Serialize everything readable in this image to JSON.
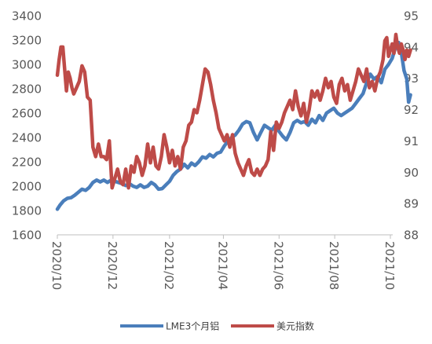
{
  "chart_data": {
    "type": "line",
    "title": "",
    "x_ticks": [
      "2020/10",
      "2020/12",
      "2021/02",
      "2021/04",
      "2021/06",
      "2021/08",
      "2021/10"
    ],
    "y_left": {
      "min": 1600,
      "max": 3400,
      "step": 200,
      "ticks": [
        "1600",
        "1800",
        "2000",
        "2200",
        "2400",
        "2600",
        "2800",
        "3000",
        "3200",
        "3400"
      ]
    },
    "y_right": {
      "min": 88,
      "max": 95,
      "step": 1,
      "ticks": [
        "88",
        "89",
        "90",
        "91",
        "92",
        "93",
        "94",
        "95"
      ]
    },
    "grid": false,
    "legend_position": "bottom",
    "series": [
      {
        "name": "LME3个月铝",
        "axis": "left",
        "color": "#4a7ebb",
        "points": [
          [
            "2020-10-01",
            1810
          ],
          [
            "2020-10-04",
            1845
          ],
          [
            "2020-10-08",
            1880
          ],
          [
            "2020-10-12",
            1900
          ],
          [
            "2020-10-16",
            1905
          ],
          [
            "2020-10-20",
            1925
          ],
          [
            "2020-10-24",
            1950
          ],
          [
            "2020-10-28",
            1975
          ],
          [
            "2020-11-01",
            1965
          ],
          [
            "2020-11-05",
            1990
          ],
          [
            "2020-11-09",
            2030
          ],
          [
            "2020-11-13",
            2050
          ],
          [
            "2020-11-17",
            2035
          ],
          [
            "2020-11-21",
            2050
          ],
          [
            "2020-11-25",
            2030
          ],
          [
            "2020-11-29",
            2050
          ],
          [
            "2020-12-03",
            2040
          ],
          [
            "2020-12-07",
            2030
          ],
          [
            "2020-12-11",
            2020
          ],
          [
            "2020-12-15",
            2005
          ],
          [
            "2020-12-19",
            2020
          ],
          [
            "2020-12-23",
            2000
          ],
          [
            "2020-12-27",
            1990
          ],
          [
            "2020-12-31",
            2010
          ],
          [
            "2021-01-04",
            1990
          ],
          [
            "2021-01-08",
            2000
          ],
          [
            "2021-01-12",
            2030
          ],
          [
            "2021-01-16",
            2010
          ],
          [
            "2021-01-20",
            1975
          ],
          [
            "2021-01-24",
            1980
          ],
          [
            "2021-01-28",
            2010
          ],
          [
            "2021-02-01",
            2040
          ],
          [
            "2021-02-05",
            2090
          ],
          [
            "2021-02-09",
            2120
          ],
          [
            "2021-02-13",
            2140
          ],
          [
            "2021-02-17",
            2180
          ],
          [
            "2021-02-21",
            2150
          ],
          [
            "2021-02-25",
            2190
          ],
          [
            "2021-03-01",
            2170
          ],
          [
            "2021-03-05",
            2200
          ],
          [
            "2021-03-09",
            2240
          ],
          [
            "2021-03-13",
            2230
          ],
          [
            "2021-03-17",
            2260
          ],
          [
            "2021-03-21",
            2240
          ],
          [
            "2021-03-25",
            2270
          ],
          [
            "2021-03-29",
            2280
          ],
          [
            "2021-04-02",
            2330
          ],
          [
            "2021-04-06",
            2370
          ],
          [
            "2021-04-10",
            2400
          ],
          [
            "2021-04-14",
            2420
          ],
          [
            "2021-04-18",
            2460
          ],
          [
            "2021-04-22",
            2510
          ],
          [
            "2021-04-26",
            2530
          ],
          [
            "2021-04-30",
            2520
          ],
          [
            "2021-05-04",
            2440
          ],
          [
            "2021-05-08",
            2380
          ],
          [
            "2021-05-12",
            2440
          ],
          [
            "2021-05-16",
            2500
          ],
          [
            "2021-05-20",
            2480
          ],
          [
            "2021-05-24",
            2460
          ],
          [
            "2021-05-28",
            2500
          ],
          [
            "2021-06-01",
            2450
          ],
          [
            "2021-06-05",
            2410
          ],
          [
            "2021-06-09",
            2380
          ],
          [
            "2021-06-13",
            2440
          ],
          [
            "2021-06-17",
            2520
          ],
          [
            "2021-06-21",
            2540
          ],
          [
            "2021-06-25",
            2520
          ],
          [
            "2021-06-29",
            2530
          ],
          [
            "2021-07-03",
            2500
          ],
          [
            "2021-07-07",
            2550
          ],
          [
            "2021-07-11",
            2520
          ],
          [
            "2021-07-15",
            2580
          ],
          [
            "2021-07-19",
            2540
          ],
          [
            "2021-07-23",
            2600
          ],
          [
            "2021-07-27",
            2620
          ],
          [
            "2021-07-31",
            2640
          ],
          [
            "2021-08-04",
            2600
          ],
          [
            "2021-08-08",
            2580
          ],
          [
            "2021-08-12",
            2600
          ],
          [
            "2021-08-16",
            2620
          ],
          [
            "2021-08-20",
            2640
          ],
          [
            "2021-08-24",
            2680
          ],
          [
            "2021-08-28",
            2720
          ],
          [
            "2021-09-01",
            2760
          ],
          [
            "2021-09-05",
            2850
          ],
          [
            "2021-09-09",
            2920
          ],
          [
            "2021-09-13",
            2880
          ],
          [
            "2021-09-17",
            2900
          ],
          [
            "2021-09-21",
            2850
          ],
          [
            "2021-09-25",
            2960
          ],
          [
            "2021-09-29",
            3000
          ],
          [
            "2021-10-03",
            3050
          ],
          [
            "2021-10-07",
            3150
          ],
          [
            "2021-10-10",
            3180
          ],
          [
            "2021-10-13",
            3100
          ],
          [
            "2021-10-16",
            2950
          ],
          [
            "2021-10-19",
            2880
          ],
          [
            "2021-10-21",
            2690
          ],
          [
            "2021-10-23",
            2750
          ]
        ]
      },
      {
        "name": "美元指数",
        "axis": "right",
        "color": "#be4b48",
        "points": [
          [
            "2020-10-01",
            93.1
          ],
          [
            "2020-10-03",
            93.6
          ],
          [
            "2020-10-05",
            94.0
          ],
          [
            "2020-10-07",
            94.0
          ],
          [
            "2020-10-09",
            93.3
          ],
          [
            "2020-10-11",
            92.6
          ],
          [
            "2020-10-13",
            93.2
          ],
          [
            "2020-10-15",
            93.0
          ],
          [
            "2020-10-17",
            92.7
          ],
          [
            "2020-10-19",
            92.5
          ],
          [
            "2020-10-22",
            92.7
          ],
          [
            "2020-10-25",
            92.9
          ],
          [
            "2020-10-28",
            93.4
          ],
          [
            "2020-10-31",
            93.2
          ],
          [
            "2020-11-03",
            92.4
          ],
          [
            "2020-11-06",
            92.3
          ],
          [
            "2020-11-09",
            90.8
          ],
          [
            "2020-11-12",
            90.5
          ],
          [
            "2020-11-15",
            90.9
          ],
          [
            "2020-11-18",
            90.5
          ],
          [
            "2020-11-21",
            90.5
          ],
          [
            "2020-11-24",
            90.4
          ],
          [
            "2020-11-27",
            91.0
          ],
          [
            "2020-11-30",
            89.5
          ],
          [
            "2020-12-03",
            89.8
          ],
          [
            "2020-12-06",
            90.1
          ],
          [
            "2020-12-09",
            89.7
          ],
          [
            "2020-12-12",
            89.6
          ],
          [
            "2020-12-15",
            90.1
          ],
          [
            "2020-12-18",
            89.5
          ],
          [
            "2020-12-21",
            90.2
          ],
          [
            "2020-12-24",
            90.0
          ],
          [
            "2020-12-27",
            90.5
          ],
          [
            "2020-12-30",
            90.3
          ],
          [
            "2021-01-02",
            89.9
          ],
          [
            "2021-01-05",
            90.2
          ],
          [
            "2021-01-08",
            90.9
          ],
          [
            "2021-01-11",
            90.3
          ],
          [
            "2021-01-14",
            90.8
          ],
          [
            "2021-01-17",
            90.2
          ],
          [
            "2021-01-20",
            90.1
          ],
          [
            "2021-01-23",
            90.5
          ],
          [
            "2021-01-26",
            91.2
          ],
          [
            "2021-01-29",
            90.8
          ],
          [
            "2021-02-01",
            90.3
          ],
          [
            "2021-02-04",
            90.7
          ],
          [
            "2021-02-07",
            90.2
          ],
          [
            "2021-02-10",
            90.5
          ],
          [
            "2021-02-13",
            90.1
          ],
          [
            "2021-02-16",
            90.8
          ],
          [
            "2021-02-19",
            91.0
          ],
          [
            "2021-02-22",
            91.5
          ],
          [
            "2021-02-25",
            91.6
          ],
          [
            "2021-02-28",
            92.0
          ],
          [
            "2021-03-03",
            91.9
          ],
          [
            "2021-03-06",
            92.3
          ],
          [
            "2021-03-09",
            92.8
          ],
          [
            "2021-03-12",
            93.3
          ],
          [
            "2021-03-15",
            93.2
          ],
          [
            "2021-03-18",
            92.8
          ],
          [
            "2021-03-21",
            92.3
          ],
          [
            "2021-03-24",
            91.9
          ],
          [
            "2021-03-27",
            91.4
          ],
          [
            "2021-03-30",
            91.2
          ],
          [
            "2021-04-02",
            91.0
          ],
          [
            "2021-04-05",
            91.2
          ],
          [
            "2021-04-08",
            90.8
          ],
          [
            "2021-04-11",
            91.2
          ],
          [
            "2021-04-14",
            90.6
          ],
          [
            "2021-04-17",
            90.3
          ],
          [
            "2021-04-20",
            90.1
          ],
          [
            "2021-04-23",
            89.9
          ],
          [
            "2021-04-26",
            90.2
          ],
          [
            "2021-04-29",
            90.4
          ],
          [
            "2021-05-02",
            90.0
          ],
          [
            "2021-05-05",
            89.9
          ],
          [
            "2021-05-08",
            90.1
          ],
          [
            "2021-05-11",
            89.9
          ],
          [
            "2021-05-14",
            90.1
          ],
          [
            "2021-05-17",
            90.2
          ],
          [
            "2021-05-20",
            90.4
          ],
          [
            "2021-05-23",
            91.3
          ],
          [
            "2021-05-26",
            90.7
          ],
          [
            "2021-05-29",
            91.6
          ],
          [
            "2021-06-01",
            91.4
          ],
          [
            "2021-06-04",
            91.6
          ],
          [
            "2021-06-07",
            91.9
          ],
          [
            "2021-06-10",
            92.1
          ],
          [
            "2021-06-13",
            92.3
          ],
          [
            "2021-06-16",
            92.0
          ],
          [
            "2021-06-19",
            92.6
          ],
          [
            "2021-06-22",
            92.1
          ],
          [
            "2021-06-25",
            91.8
          ],
          [
            "2021-06-28",
            92.2
          ],
          [
            "2021-07-01",
            91.6
          ],
          [
            "2021-07-04",
            92.0
          ],
          [
            "2021-07-07",
            92.6
          ],
          [
            "2021-07-10",
            92.4
          ],
          [
            "2021-07-13",
            92.6
          ],
          [
            "2021-07-16",
            92.3
          ],
          [
            "2021-07-19",
            92.6
          ],
          [
            "2021-07-22",
            93.0
          ],
          [
            "2021-07-25",
            92.7
          ],
          [
            "2021-07-28",
            92.9
          ],
          [
            "2021-07-31",
            92.4
          ],
          [
            "2021-08-03",
            92.2
          ],
          [
            "2021-08-06",
            92.8
          ],
          [
            "2021-08-09",
            93.0
          ],
          [
            "2021-08-12",
            92.6
          ],
          [
            "2021-08-15",
            92.8
          ],
          [
            "2021-08-18",
            92.3
          ],
          [
            "2021-08-21",
            92.6
          ],
          [
            "2021-08-24",
            92.9
          ],
          [
            "2021-08-27",
            93.3
          ],
          [
            "2021-08-30",
            93.1
          ],
          [
            "2021-09-02",
            92.9
          ],
          [
            "2021-09-05",
            93.3
          ],
          [
            "2021-09-08",
            92.7
          ],
          [
            "2021-09-11",
            92.9
          ],
          [
            "2021-09-14",
            92.6
          ],
          [
            "2021-09-17",
            93.0
          ],
          [
            "2021-09-20",
            93.2
          ],
          [
            "2021-09-23",
            93.6
          ],
          [
            "2021-09-25",
            94.2
          ],
          [
            "2021-09-27",
            94.3
          ],
          [
            "2021-09-29",
            93.7
          ],
          [
            "2021-10-01",
            93.9
          ],
          [
            "2021-10-03",
            94.1
          ],
          [
            "2021-10-05",
            93.8
          ],
          [
            "2021-10-07",
            94.4
          ],
          [
            "2021-10-09",
            94.0
          ],
          [
            "2021-10-11",
            93.8
          ],
          [
            "2021-10-13",
            94.1
          ],
          [
            "2021-10-15",
            93.9
          ],
          [
            "2021-10-17",
            93.6
          ],
          [
            "2021-10-19",
            93.9
          ],
          [
            "2021-10-21",
            93.7
          ],
          [
            "2021-10-23",
            93.9
          ]
        ]
      }
    ]
  }
}
